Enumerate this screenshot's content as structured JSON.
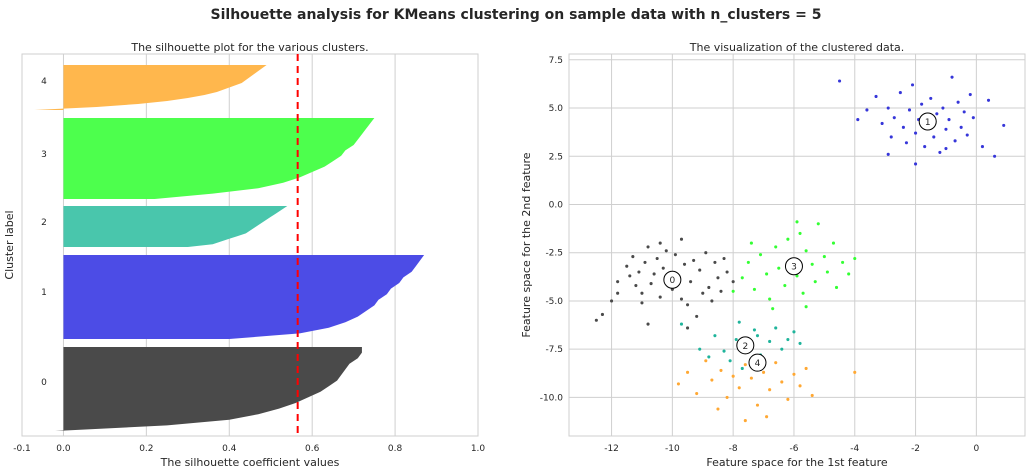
{
  "title": "Silhouette analysis for KMeans clustering on sample data with n_clusters = 5",
  "chart_data": [
    {
      "type": "area",
      "title": "The silhouette plot for the various clusters.",
      "xlabel": "The silhouette coefficient values",
      "ylabel": "Cluster label",
      "xlim": [
        -0.1,
        1.0
      ],
      "xticks": [
        -0.1,
        0.0,
        0.2,
        0.4,
        0.6,
        0.8,
        1.0
      ],
      "xtick_labels": [
        "-0.1",
        "0.0",
        "0.2",
        "0.4",
        "0.6",
        "0.8",
        "1.0"
      ],
      "grid": true,
      "average_silhouette": 0.565,
      "clusters": [
        {
          "label": "0",
          "color": "#4a4a4a",
          "max_value": 0.72,
          "profile": [
            0.72,
            0.72,
            0.71,
            0.69,
            0.68,
            0.67,
            0.66,
            0.64,
            0.62,
            0.59,
            0.56,
            0.52,
            0.47,
            0.4,
            0.25,
            -0.02
          ]
        },
        {
          "label": "1",
          "color": "#4c4ce6",
          "max_value": 0.87,
          "profile": [
            0.87,
            0.86,
            0.85,
            0.84,
            0.82,
            0.81,
            0.79,
            0.78,
            0.76,
            0.75,
            0.73,
            0.71,
            0.68,
            0.64,
            0.57,
            0.4
          ]
        },
        {
          "label": "2",
          "color": "#49c6ac",
          "max_value": 0.54,
          "profile": [
            0.54,
            0.53,
            0.52,
            0.51,
            0.5,
            0.49,
            0.48,
            0.47,
            0.46,
            0.45,
            0.44,
            0.42,
            0.4,
            0.38,
            0.36,
            0.3
          ]
        },
        {
          "label": "3",
          "color": "#4dff4d",
          "max_value": 0.75,
          "profile": [
            0.75,
            0.74,
            0.73,
            0.72,
            0.71,
            0.7,
            0.68,
            0.67,
            0.65,
            0.63,
            0.6,
            0.57,
            0.53,
            0.47,
            0.36,
            0.22
          ]
        },
        {
          "label": "4",
          "color": "#ffb74d",
          "max_value": 0.49,
          "profile": [
            0.49,
            0.48,
            0.47,
            0.46,
            0.45,
            0.44,
            0.43,
            0.41,
            0.39,
            0.37,
            0.34,
            0.3,
            0.25,
            0.18,
            0.08,
            -0.07
          ]
        }
      ]
    },
    {
      "type": "scatter",
      "title": "The visualization of the clustered data.",
      "xlabel": "Feature space for the 1st feature",
      "ylabel": "Feature space for the 2nd feature",
      "xlim": [
        -13.4,
        1.6
      ],
      "ylim": [
        -12.0,
        7.8
      ],
      "xticks": [
        -12,
        -10,
        -8,
        -6,
        -4,
        -2,
        0
      ],
      "xtick_labels": [
        "-12",
        "-10",
        "-8",
        "-6",
        "-4",
        "-2",
        "0"
      ],
      "yticks": [
        -10.0,
        -7.5,
        -5.0,
        -2.5,
        0.0,
        2.5,
        5.0,
        7.5
      ],
      "ytick_labels": [
        "-10.0",
        "-7.5",
        "-5.0",
        "-2.5",
        "0.0",
        "2.5",
        "5.0",
        "7.5"
      ],
      "grid": true,
      "clusters": [
        {
          "label": "0",
          "color": "#4a4a4a",
          "center": [
            -10.0,
            -3.9
          ],
          "points": [
            [
              -12.5,
              -6.0
            ],
            [
              -12.3,
              -5.7
            ],
            [
              -12.0,
              -5.0
            ],
            [
              -11.8,
              -4.6
            ],
            [
              -11.8,
              -4.0
            ],
            [
              -11.5,
              -3.2
            ],
            [
              -11.4,
              -3.7
            ],
            [
              -11.3,
              -2.7
            ],
            [
              -11.2,
              -4.2
            ],
            [
              -11.1,
              -3.5
            ],
            [
              -11.0,
              -4.6
            ],
            [
              -10.9,
              -3.0
            ],
            [
              -10.8,
              -2.2
            ],
            [
              -10.7,
              -4.1
            ],
            [
              -10.6,
              -3.6
            ],
            [
              -10.5,
              -2.8
            ],
            [
              -10.4,
              -4.8
            ],
            [
              -10.3,
              -3.3
            ],
            [
              -10.2,
              -2.4
            ],
            [
              -10.1,
              -3.9
            ],
            [
              -10.0,
              -4.4
            ],
            [
              -9.9,
              -2.6
            ],
            [
              -9.8,
              -3.7
            ],
            [
              -9.7,
              -4.9
            ],
            [
              -9.6,
              -3.1
            ],
            [
              -9.5,
              -5.2
            ],
            [
              -9.4,
              -4.0
            ],
            [
              -9.3,
              -2.9
            ],
            [
              -9.2,
              -5.8
            ],
            [
              -9.1,
              -3.4
            ],
            [
              -9.0,
              -4.6
            ],
            [
              -8.9,
              -2.5
            ],
            [
              -8.8,
              -4.3
            ],
            [
              -8.7,
              -5.0
            ],
            [
              -8.6,
              -3.0
            ],
            [
              -8.5,
              -3.8
            ],
            [
              -8.4,
              -4.5
            ],
            [
              -8.3,
              -2.8
            ],
            [
              -8.2,
              -3.5
            ],
            [
              -8.0,
              -4.0
            ],
            [
              -10.4,
              -2.0
            ],
            [
              -9.7,
              -1.8
            ],
            [
              -11.0,
              -5.1
            ],
            [
              -10.8,
              -6.2
            ],
            [
              -9.5,
              -6.4
            ]
          ]
        },
        {
          "label": "1",
          "color": "#3636d9",
          "center": [
            -1.6,
            4.3
          ],
          "points": [
            [
              -4.5,
              6.4
            ],
            [
              -3.3,
              5.6
            ],
            [
              -3.1,
              4.2
            ],
            [
              -2.9,
              5.0
            ],
            [
              -2.8,
              3.5
            ],
            [
              -2.7,
              4.5
            ],
            [
              -2.5,
              5.8
            ],
            [
              -2.4,
              4.0
            ],
            [
              -2.3,
              3.2
            ],
            [
              -2.2,
              4.9
            ],
            [
              -2.1,
              6.2
            ],
            [
              -2.0,
              3.7
            ],
            [
              -1.9,
              4.4
            ],
            [
              -1.8,
              5.2
            ],
            [
              -1.7,
              3.0
            ],
            [
              -1.6,
              4.1
            ],
            [
              -1.5,
              5.5
            ],
            [
              -1.4,
              3.5
            ],
            [
              -1.3,
              4.7
            ],
            [
              -1.2,
              2.7
            ],
            [
              -1.1,
              5.0
            ],
            [
              -1.0,
              3.9
            ],
            [
              -0.9,
              4.4
            ],
            [
              -0.8,
              6.6
            ],
            [
              -0.7,
              3.3
            ],
            [
              -0.6,
              5.3
            ],
            [
              -0.5,
              4.0
            ],
            [
              -0.4,
              4.8
            ],
            [
              -0.3,
              3.6
            ],
            [
              -0.2,
              5.7
            ],
            [
              -0.1,
              4.5
            ],
            [
              0.2,
              3.0
            ],
            [
              0.4,
              5.4
            ],
            [
              0.6,
              2.5
            ],
            [
              0.9,
              4.1
            ],
            [
              -2.9,
              2.6
            ],
            [
              -3.6,
              4.9
            ],
            [
              -2.0,
              2.1
            ],
            [
              -1.0,
              2.9
            ],
            [
              -3.9,
              4.4
            ]
          ]
        },
        {
          "label": "2",
          "color": "#1fb49b",
          "center": [
            -7.6,
            -7.3
          ],
          "points": [
            [
              -9.7,
              -6.2
            ],
            [
              -9.1,
              -7.5
            ],
            [
              -8.8,
              -7.9
            ],
            [
              -8.6,
              -6.8
            ],
            [
              -8.3,
              -7.6
            ],
            [
              -8.1,
              -8.1
            ],
            [
              -7.9,
              -7.0
            ],
            [
              -7.7,
              -8.5
            ],
            [
              -7.5,
              -7.3
            ],
            [
              -7.3,
              -6.5
            ],
            [
              -7.1,
              -7.8
            ],
            [
              -7.0,
              -8.2
            ],
            [
              -6.8,
              -7.1
            ],
            [
              -6.6,
              -6.4
            ],
            [
              -6.4,
              -7.5
            ],
            [
              -6.2,
              -7.0
            ],
            [
              -6.0,
              -6.6
            ],
            [
              -5.8,
              -7.2
            ],
            [
              -7.8,
              -6.1
            ],
            [
              -7.2,
              -6.8
            ]
          ]
        },
        {
          "label": "3",
          "color": "#33ff33",
          "center": [
            -6.0,
            -3.2
          ],
          "points": [
            [
              -8.0,
              -4.5
            ],
            [
              -7.7,
              -3.8
            ],
            [
              -7.5,
              -3.0
            ],
            [
              -7.3,
              -4.4
            ],
            [
              -7.1,
              -2.6
            ],
            [
              -6.9,
              -3.6
            ],
            [
              -6.8,
              -4.9
            ],
            [
              -6.6,
              -2.2
            ],
            [
              -6.5,
              -3.3
            ],
            [
              -6.3,
              -4.2
            ],
            [
              -6.2,
              -1.8
            ],
            [
              -6.1,
              -2.9
            ],
            [
              -5.9,
              -3.7
            ],
            [
              -5.8,
              -1.5
            ],
            [
              -5.7,
              -4.6
            ],
            [
              -5.6,
              -2.4
            ],
            [
              -5.4,
              -3.1
            ],
            [
              -5.3,
              -4.0
            ],
            [
              -5.2,
              -1.0
            ],
            [
              -5.0,
              -2.7
            ],
            [
              -4.9,
              -3.5
            ],
            [
              -4.7,
              -2.0
            ],
            [
              -4.6,
              -4.3
            ],
            [
              -4.4,
              -3.0
            ],
            [
              -4.2,
              -3.6
            ],
            [
              -4.0,
              -2.8
            ],
            [
              -6.7,
              -5.4
            ],
            [
              -5.6,
              -5.3
            ],
            [
              -5.9,
              -0.9
            ],
            [
              -7.4,
              -2.0
            ]
          ]
        },
        {
          "label": "4",
          "color": "#ffa833",
          "center": [
            -7.2,
            -8.2
          ],
          "points": [
            [
              -9.8,
              -9.3
            ],
            [
              -9.5,
              -8.7
            ],
            [
              -9.2,
              -9.8
            ],
            [
              -8.9,
              -8.1
            ],
            [
              -8.7,
              -9.1
            ],
            [
              -8.4,
              -8.6
            ],
            [
              -8.2,
              -10.0
            ],
            [
              -8.0,
              -8.9
            ],
            [
              -7.8,
              -9.5
            ],
            [
              -7.6,
              -8.3
            ],
            [
              -7.4,
              -9.0
            ],
            [
              -7.2,
              -10.4
            ],
            [
              -7.0,
              -8.7
            ],
            [
              -6.8,
              -9.6
            ],
            [
              -6.6,
              -8.2
            ],
            [
              -6.4,
              -9.2
            ],
            [
              -6.2,
              -10.1
            ],
            [
              -6.0,
              -8.8
            ],
            [
              -5.8,
              -9.4
            ],
            [
              -5.6,
              -8.5
            ],
            [
              -5.4,
              -9.9
            ],
            [
              -7.6,
              -11.2
            ],
            [
              -6.9,
              -11.0
            ],
            [
              -4.0,
              -8.7
            ],
            [
              -8.5,
              -10.6
            ]
          ]
        }
      ]
    }
  ]
}
